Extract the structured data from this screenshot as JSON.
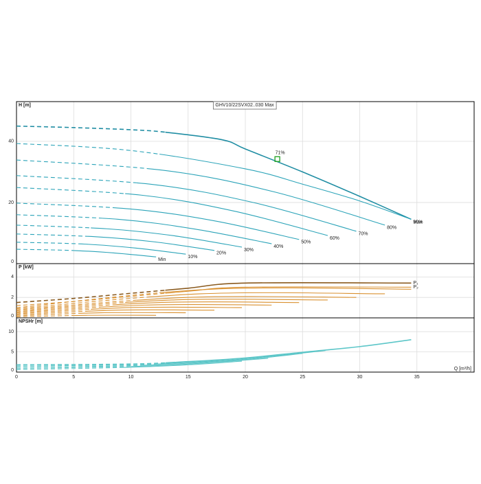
{
  "chart_data": [
    {
      "type": "line",
      "title": "GHV10/22SVX02..030 Max",
      "ylabel": "H [m]",
      "xlim": [
        0,
        40
      ],
      "ylim": [
        0,
        53
      ],
      "yticks": [
        0,
        20,
        40
      ],
      "grid": true,
      "curve_labels": true,
      "annotation": {
        "text": "71%",
        "x": 22.8,
        "y": 34.2,
        "color": "#2aa52a"
      },
      "series": [
        {
          "name": "Max",
          "color": "#1f8da3",
          "dashed_to": 13,
          "x": [
            0,
            5,
            10,
            13,
            18,
            20,
            25,
            30,
            34.5
          ],
          "values": [
            45,
            44.5,
            43.8,
            43,
            40.5,
            37.5,
            30,
            22,
            14.5
          ]
        },
        {
          "name": "90%",
          "color": "#2aa3b8",
          "dashed_to": 12.5,
          "x": [
            0,
            10,
            20,
            25,
            30,
            34.5
          ],
          "values": [
            39.3,
            37,
            31,
            26,
            20.5,
            14.5
          ]
        },
        {
          "name": "80%",
          "color": "#2aa3b8",
          "dashed_to": 11.5,
          "x": [
            0,
            12.9,
            22.5,
            32.2
          ],
          "values": [
            33.9,
            30.5,
            23.5,
            12.6
          ]
        },
        {
          "name": "70%",
          "color": "#2aa3b8",
          "dashed_to": 10.5,
          "x": [
            0,
            11.9,
            20.8,
            29.7
          ],
          "values": [
            28.8,
            25.9,
            19.9,
            10.6
          ]
        },
        {
          "name": "60%",
          "color": "#2aa3b8",
          "dashed_to": 9.5,
          "x": [
            0,
            10.9,
            19,
            27.2
          ],
          "values": [
            24.9,
            22.4,
            17.2,
            9.2
          ]
        },
        {
          "name": "50%",
          "color": "#2aa3b8",
          "dashed_to": 8.5,
          "x": [
            0,
            9.9,
            17.3,
            24.7
          ],
          "values": [
            19.8,
            17.9,
            14,
            7.9
          ]
        },
        {
          "name": "40%",
          "color": "#2aa3b8",
          "dashed_to": 7.5,
          "x": [
            0,
            8.9,
            15.6,
            22.3
          ],
          "values": [
            16,
            14.5,
            11.3,
            6.5
          ]
        },
        {
          "name": "30%",
          "color": "#2aa3b8",
          "dashed_to": 6.5,
          "x": [
            0,
            7.9,
            13.8,
            19.7
          ],
          "values": [
            12.6,
            11.4,
            9.1,
            5.4
          ]
        },
        {
          "name": "20%",
          "color": "#2aa3b8",
          "dashed_to": 6,
          "x": [
            0,
            6.9,
            12.1,
            17.3
          ],
          "values": [
            9.7,
            8.8,
            7.1,
            4.3
          ]
        },
        {
          "name": "10%",
          "color": "#2aa3b8",
          "dashed_to": 5.5,
          "x": [
            0,
            5.9,
            10.4,
            14.8
          ],
          "values": [
            7,
            6.4,
            5.1,
            3.1
          ]
        },
        {
          "name": "Min",
          "color": "#2aa3b8",
          "dashed_to": 5,
          "x": [
            0,
            4.9,
            8.5,
            12.2
          ],
          "values": [
            4.7,
            4.3,
            3.5,
            2.2
          ]
        }
      ]
    },
    {
      "type": "line",
      "ylabel": "P [kW]",
      "xlim": [
        0,
        40
      ],
      "ylim": [
        0,
        5.3
      ],
      "yticks": [
        0,
        2,
        4
      ],
      "grid": true,
      "curve_labels": true,
      "series": [
        {
          "name": "P₁",
          "color": "#8a5a1e",
          "dashed_to": 13,
          "x": [
            0,
            5,
            10,
            15,
            20,
            34.5
          ],
          "values": [
            1.5,
            1.9,
            2.4,
            2.9,
            3.4,
            3.4
          ]
        },
        {
          "name": "P₂",
          "color": "#d9902f",
          "dashed_to": 13,
          "x": [
            0,
            5,
            10,
            15,
            20,
            34.5
          ],
          "values": [
            1.2,
            1.6,
            2.1,
            2.6,
            3.0,
            3.0
          ]
        },
        {
          "color": "#d9902f",
          "dashed_to": 12.5,
          "x": [
            0,
            17,
            34.5
          ],
          "values": [
            1.0,
            2.8,
            2.8
          ]
        },
        {
          "color": "#d9902f",
          "dashed_to": 11.5,
          "x": [
            0,
            16.1,
            32.2
          ],
          "values": [
            0.9,
            2.35,
            2.35
          ]
        },
        {
          "color": "#d9902f",
          "dashed_to": 10.5,
          "x": [
            0,
            14.9,
            29.7
          ],
          "values": [
            0.8,
            2.0,
            2.0
          ]
        },
        {
          "color": "#d9902f",
          "dashed_to": 9.5,
          "x": [
            0,
            13.6,
            27.2
          ],
          "values": [
            0.7,
            1.75,
            1.75
          ]
        },
        {
          "color": "#d9902f",
          "dashed_to": 8.5,
          "x": [
            0,
            12.4,
            24.7
          ],
          "values": [
            0.6,
            1.5,
            1.5
          ]
        },
        {
          "color": "#d9902f",
          "dashed_to": 7.5,
          "x": [
            0,
            11.2,
            22.3
          ],
          "values": [
            0.5,
            1.25,
            1.25
          ]
        },
        {
          "color": "#d9902f",
          "dashed_to": 6.5,
          "x": [
            0,
            9.9,
            19.7
          ],
          "values": [
            0.4,
            1.0,
            1.0
          ]
        },
        {
          "color": "#d9902f",
          "dashed_to": 6,
          "x": [
            0,
            8.7,
            17.3
          ],
          "values": [
            0.3,
            0.75,
            0.75
          ]
        },
        {
          "color": "#d9902f",
          "dashed_to": 5.5,
          "x": [
            0,
            7.4,
            14.8
          ],
          "values": [
            0.2,
            0.5,
            0.5
          ]
        },
        {
          "color": "#d9902f",
          "dashed_to": 5,
          "x": [
            0,
            6.1,
            12.2
          ],
          "values": [
            0.1,
            0.25,
            0.25
          ]
        }
      ]
    },
    {
      "type": "line",
      "ylabel": "NPSHr [m]",
      "xlabel": "Q [m³/h]",
      "xlim": [
        0,
        40
      ],
      "ylim": [
        0,
        13.4
      ],
      "yticks": [
        0,
        5,
        10
      ],
      "xticks": [
        0,
        5,
        10,
        15,
        20,
        25,
        30,
        35
      ],
      "grid": true,
      "curve_labels": false,
      "series": [
        {
          "color": "#5cc6c8",
          "dashed_to": 13,
          "x": [
            0,
            10,
            15,
            20,
            25,
            30,
            34.5
          ],
          "values": [
            1.8,
            2.0,
            2.6,
            3.5,
            4.9,
            6.3,
            8
          ]
        },
        {
          "color": "#5cc6c8",
          "dashed_to": 12,
          "x": [
            0,
            10,
            15,
            20,
            27
          ],
          "values": [
            1.5,
            1.8,
            2.4,
            3.3,
            5.3
          ]
        },
        {
          "color": "#5cc6c8",
          "dashed_to": 11,
          "x": [
            0,
            10,
            15,
            20,
            25
          ],
          "values": [
            1.2,
            1.6,
            2.2,
            3.1,
            4.6
          ]
        },
        {
          "color": "#5cc6c8",
          "dashed_to": 10,
          "x": [
            0,
            10,
            15,
            22
          ],
          "values": [
            0.9,
            1.4,
            2.0,
            3.4
          ]
        },
        {
          "color": "#5cc6c8",
          "dashed_to": 9,
          "x": [
            0,
            10,
            15,
            19.7
          ],
          "values": [
            0.6,
            1.2,
            1.8,
            2.7
          ]
        }
      ]
    }
  ]
}
